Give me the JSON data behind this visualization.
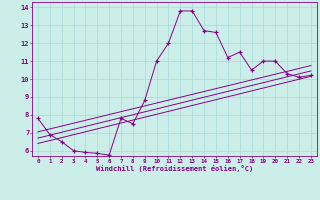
{
  "xlabel": "Windchill (Refroidissement éolien,°C)",
  "bg_color": "#cceee8",
  "grid_color": "#aadddd",
  "line_color": "#880088",
  "xlim": [
    -0.5,
    23.5
  ],
  "ylim": [
    5.7,
    14.3
  ],
  "xticks": [
    0,
    1,
    2,
    3,
    4,
    5,
    6,
    7,
    8,
    9,
    10,
    11,
    12,
    13,
    14,
    15,
    16,
    17,
    18,
    19,
    20,
    21,
    22,
    23
  ],
  "yticks": [
    6,
    7,
    8,
    9,
    10,
    11,
    12,
    13,
    14
  ],
  "series1_x": [
    0,
    1,
    2,
    3,
    4,
    5,
    6,
    7,
    8,
    9,
    10,
    11,
    12,
    13,
    14,
    15,
    16,
    17,
    18,
    19,
    20,
    21,
    22,
    23
  ],
  "series1_y": [
    7.8,
    6.9,
    6.5,
    6.0,
    5.9,
    5.85,
    5.75,
    7.8,
    7.5,
    8.8,
    11.0,
    12.0,
    13.8,
    13.8,
    12.7,
    12.6,
    11.2,
    11.5,
    10.5,
    11.0,
    11.0,
    10.3,
    10.1,
    10.2
  ],
  "line2_x": [
    0,
    23
  ],
  "line2_y": [
    6.4,
    10.15
  ],
  "line3_x": [
    0,
    23
  ],
  "line3_y": [
    6.7,
    10.45
  ],
  "line4_x": [
    0,
    23
  ],
  "line4_y": [
    7.05,
    10.75
  ]
}
